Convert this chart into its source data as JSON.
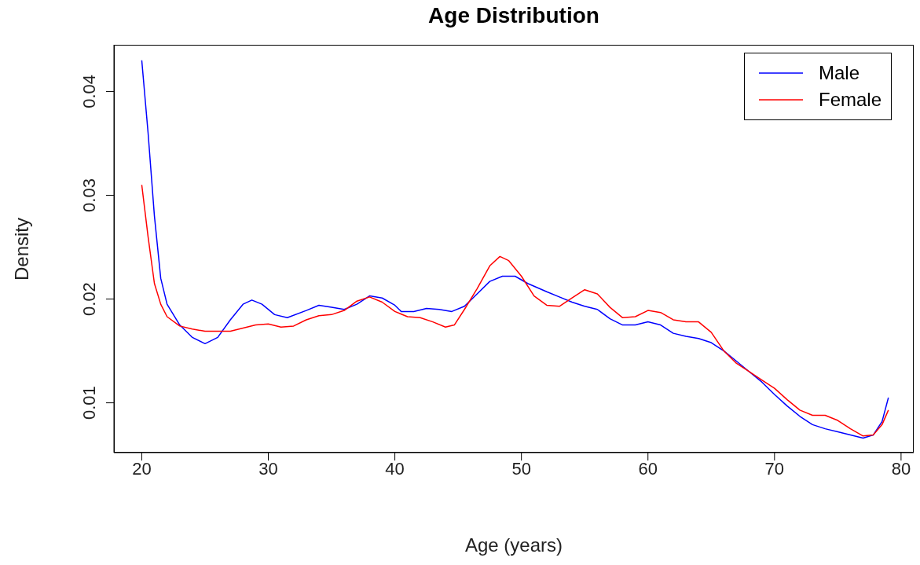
{
  "chart_data": {
    "type": "line",
    "title": "Age Distribution",
    "xlabel": "Age (years)",
    "ylabel": "Density",
    "xlim": [
      17.8,
      81
    ],
    "ylim": [
      0.0052,
      0.0445
    ],
    "xticks": [
      20,
      30,
      40,
      50,
      60,
      70,
      80
    ],
    "yticks": [
      0.01,
      0.02,
      0.03,
      0.04
    ],
    "grid": false,
    "legend": "top right",
    "marker": "none",
    "line_style": "solid",
    "series": [
      {
        "name": "Male",
        "color": "#0000ff",
        "x": [
          20,
          20.5,
          21,
          21.5,
          22,
          23,
          24,
          25,
          26,
          27,
          28,
          28.7,
          29.5,
          30.5,
          31.5,
          33,
          34,
          35,
          36,
          37,
          38,
          39,
          40,
          40.5,
          41.5,
          42.5,
          43.5,
          44.5,
          45.5,
          46.5,
          47.5,
          48.5,
          49.5,
          50.5,
          52,
          53,
          54,
          55,
          56,
          57,
          58,
          59,
          60,
          61,
          62,
          63,
          64,
          65,
          66,
          67,
          68,
          69,
          70,
          71,
          72,
          73,
          74,
          75,
          76,
          77,
          77.8,
          78.5,
          79
        ],
        "values": [
          0.043,
          0.036,
          0.028,
          0.022,
          0.0195,
          0.0175,
          0.0163,
          0.0157,
          0.0163,
          0.018,
          0.0195,
          0.0199,
          0.0195,
          0.0185,
          0.0182,
          0.0189,
          0.0194,
          0.0192,
          0.019,
          0.0195,
          0.0203,
          0.0201,
          0.0194,
          0.0188,
          0.0188,
          0.0191,
          0.019,
          0.0188,
          0.0193,
          0.0205,
          0.0217,
          0.0222,
          0.0222,
          0.0215,
          0.0207,
          0.0202,
          0.0197,
          0.0193,
          0.019,
          0.0181,
          0.0175,
          0.0175,
          0.0178,
          0.0175,
          0.0167,
          0.0164,
          0.0162,
          0.0158,
          0.015,
          0.014,
          0.013,
          0.012,
          0.0108,
          0.0097,
          0.0087,
          0.0079,
          0.0075,
          0.0072,
          0.0069,
          0.0066,
          0.0069,
          0.0082,
          0.0105
        ]
      },
      {
        "name": "Female",
        "color": "#ff0000",
        "x": [
          20,
          20.5,
          21,
          21.5,
          22,
          23,
          24,
          25,
          26,
          27,
          28,
          29,
          30,
          31,
          32,
          33,
          34,
          35,
          36,
          37,
          38,
          39,
          40,
          41,
          42,
          43,
          44,
          44.7,
          45.5,
          46.5,
          47.5,
          48.3,
          49,
          50,
          51,
          52,
          53,
          54,
          55,
          56,
          57,
          58,
          59,
          60,
          61,
          62,
          63,
          64,
          65,
          66,
          67,
          68,
          69,
          70,
          71,
          72,
          73,
          74,
          75,
          76,
          77,
          77.8,
          78.5,
          79
        ],
        "values": [
          0.031,
          0.026,
          0.0215,
          0.0195,
          0.0183,
          0.0174,
          0.0171,
          0.0169,
          0.0169,
          0.0169,
          0.0172,
          0.0175,
          0.0176,
          0.0173,
          0.0174,
          0.018,
          0.0184,
          0.0185,
          0.0189,
          0.0198,
          0.0202,
          0.0197,
          0.0188,
          0.0183,
          0.0182,
          0.0178,
          0.0173,
          0.0175,
          0.019,
          0.021,
          0.0232,
          0.0241,
          0.0237,
          0.0222,
          0.0203,
          0.0194,
          0.0193,
          0.0201,
          0.0209,
          0.0205,
          0.0192,
          0.0182,
          0.0183,
          0.0189,
          0.0187,
          0.018,
          0.0178,
          0.0178,
          0.0168,
          0.015,
          0.0138,
          0.013,
          0.0122,
          0.0114,
          0.0103,
          0.0093,
          0.0088,
          0.0088,
          0.0083,
          0.0075,
          0.0068,
          0.0069,
          0.0079,
          0.0093
        ]
      }
    ]
  }
}
